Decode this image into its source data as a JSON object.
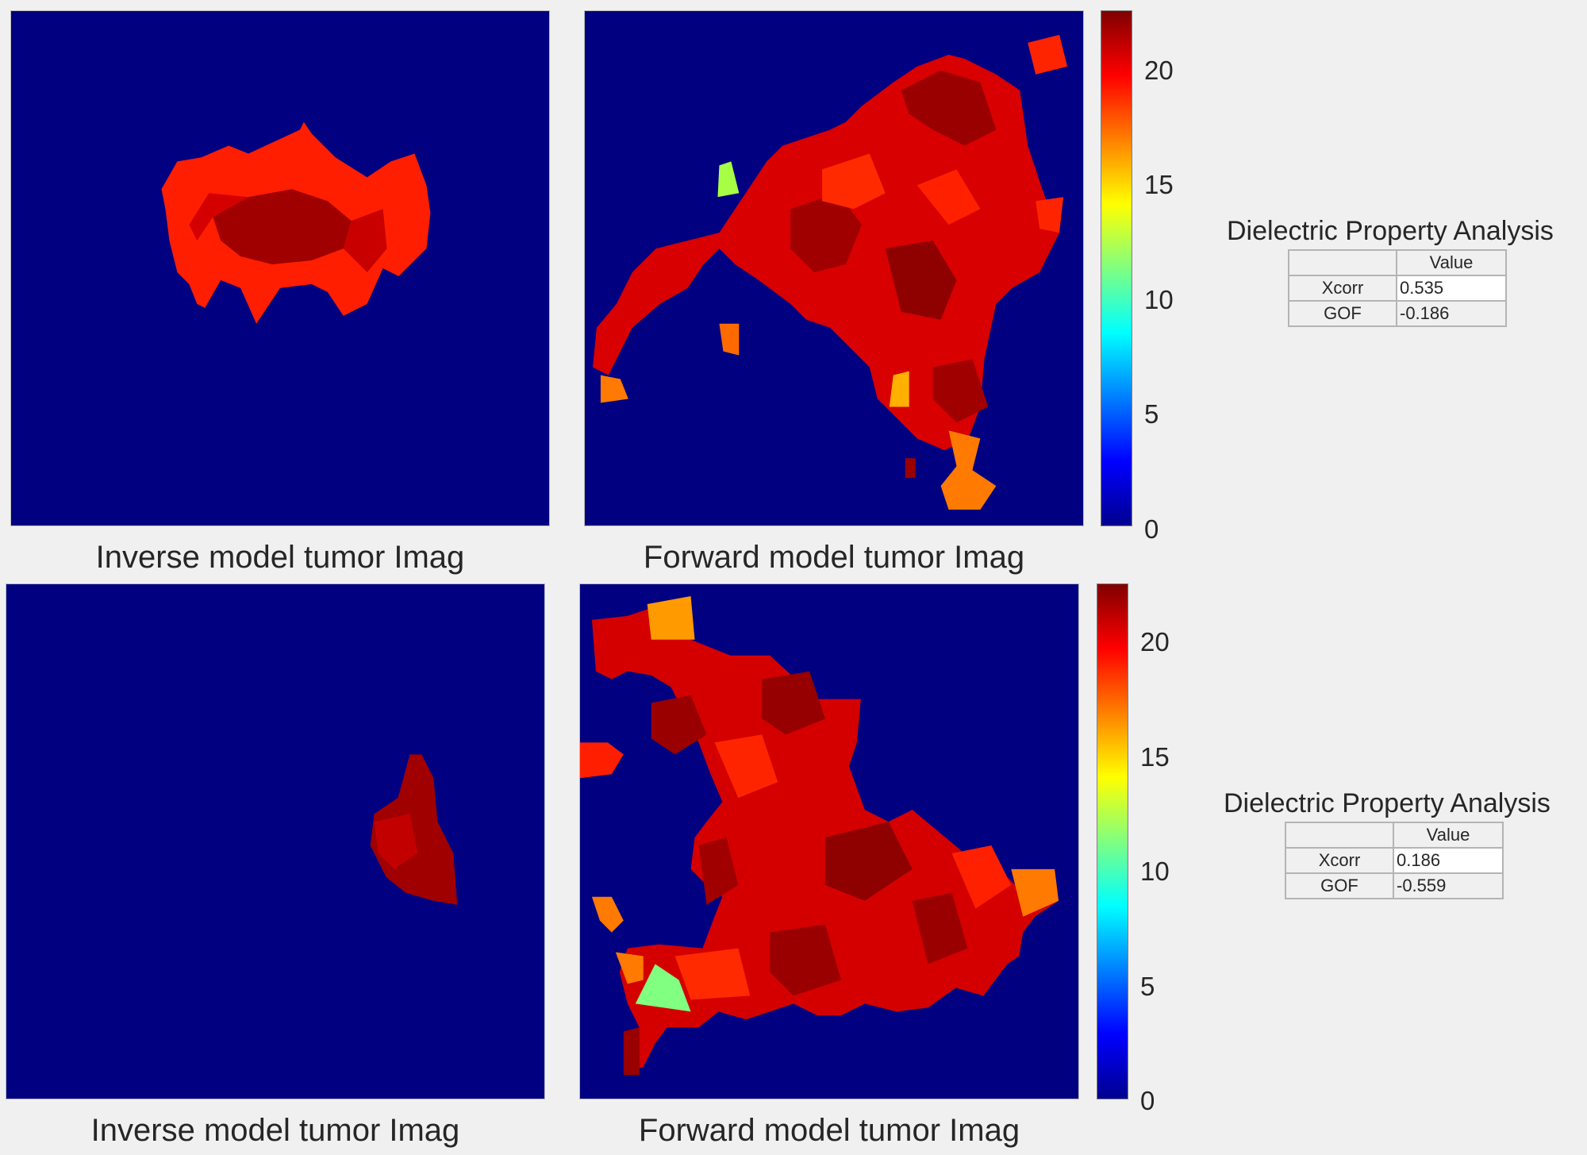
{
  "figure": {
    "rows": [
      {
        "inverse_title": "Inverse model tumor Imag",
        "forward_title": "Forward model tumor Imag",
        "colorbar_ticks": [
          "20",
          "15",
          "10",
          "5",
          "0"
        ],
        "analysis": {
          "title": "Dielectric Property Analysis",
          "header_blank": "",
          "header_value": "Value",
          "rows": [
            {
              "label": "Xcorr",
              "value": "0.535"
            },
            {
              "label": "GOF",
              "value": "-0.186"
            }
          ]
        }
      },
      {
        "inverse_title": "Inverse model tumor Imag",
        "forward_title": "Forward model tumor Imag",
        "colorbar_ticks": [
          "20",
          "15",
          "10",
          "5",
          "0"
        ],
        "analysis": {
          "title": "Dielectric Property Analysis",
          "header_blank": "",
          "header_value": "Value",
          "rows": [
            {
              "label": "Xcorr",
              "value": "0.186"
            },
            {
              "label": "GOF",
              "value": "-0.559"
            }
          ]
        }
      }
    ]
  },
  "colors": {
    "background": "#000080",
    "tumor_dark": "#960000",
    "tumor_mid": "#d20000",
    "tumor_bright": "#ff1e00",
    "tumor_orange": "#ff7a00",
    "tumor_green": "#a0ff40"
  },
  "colormap": "jet",
  "colorbar_range": [
    0,
    22.5
  ]
}
